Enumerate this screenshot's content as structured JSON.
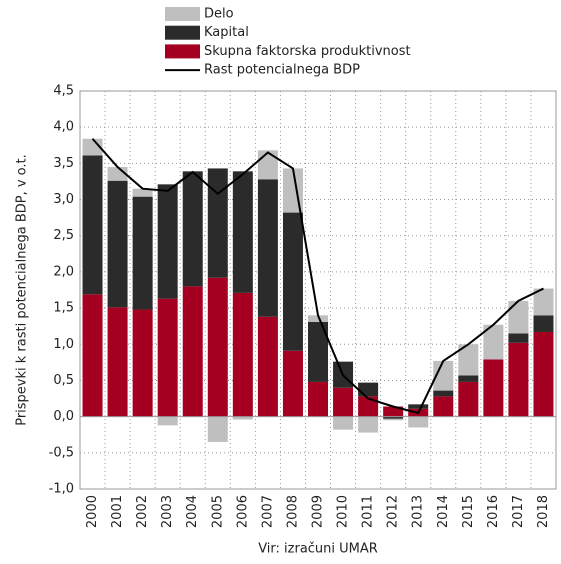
{
  "chart_data": {
    "type": "stacked-bar-line",
    "y_label": "Prispevki k rasti potencialnega BDP, v o.t.",
    "source": "Vir: izračuni UMAR",
    "categories": [
      "2000",
      "2001",
      "2002",
      "2003",
      "2004",
      "2005",
      "2006",
      "2007",
      "2008",
      "2009",
      "2010",
      "2011",
      "2012",
      "2013",
      "2014",
      "2015",
      "2016",
      "2017",
      "2018"
    ],
    "series": [
      {
        "name": "Skupna faktorska produktivnost",
        "color": "#a50021",
        "kind": "bar",
        "values": [
          1.69,
          1.51,
          1.48,
          1.63,
          1.8,
          1.92,
          1.71,
          1.38,
          0.91,
          0.48,
          0.4,
          0.28,
          0.14,
          0.11,
          0.28,
          0.48,
          0.79,
          1.02,
          1.17
        ]
      },
      {
        "name": "Kapital",
        "color": "#2b2b2b",
        "kind": "bar",
        "values": [
          1.92,
          1.75,
          1.56,
          1.58,
          1.59,
          1.51,
          1.68,
          1.9,
          1.91,
          0.83,
          0.36,
          0.19,
          -0.03,
          0.06,
          0.08,
          0.09,
          0,
          0.13,
          0.23
        ]
      },
      {
        "name": "Delo",
        "color": "#bfbfbf",
        "kind": "bar",
        "values": [
          0.23,
          0.19,
          0.11,
          -0.12,
          0,
          -0.35,
          -0.04,
          0.4,
          0.61,
          0.09,
          -0.18,
          -0.22,
          -0.02,
          -0.15,
          0.41,
          0.43,
          0.48,
          0.45,
          0.37
        ]
      },
      {
        "name": "Rast potencialnega BDP",
        "color": "#000000",
        "kind": "line",
        "values": [
          3.84,
          3.45,
          3.15,
          3.12,
          3.38,
          3.08,
          3.35,
          3.65,
          3.43,
          1.4,
          0.57,
          0.25,
          0.14,
          0.05,
          0.77,
          1.0,
          1.27,
          1.6,
          1.77
        ]
      }
    ],
    "ylim": [
      -1.0,
      4.5
    ],
    "yticks": [
      {
        "value": -1.0,
        "label": "-1,0"
      },
      {
        "value": -0.5,
        "label": "-0,5"
      },
      {
        "value": 0,
        "label": "0,0"
      },
      {
        "value": 0.5,
        "label": "0,5"
      },
      {
        "value": 1.0,
        "label": "1,0"
      },
      {
        "value": 1.5,
        "label": "1,5"
      },
      {
        "value": 2.0,
        "label": "2,0"
      },
      {
        "value": 2.5,
        "label": "2,5"
      },
      {
        "value": 3.0,
        "label": "3,0"
      },
      {
        "value": 3.5,
        "label": "3,5"
      },
      {
        "value": 4.0,
        "label": "4,0"
      },
      {
        "value": 4.5,
        "label": "4,5"
      }
    ],
    "legend_order": [
      2,
      1,
      0,
      3
    ],
    "grid": true
  }
}
